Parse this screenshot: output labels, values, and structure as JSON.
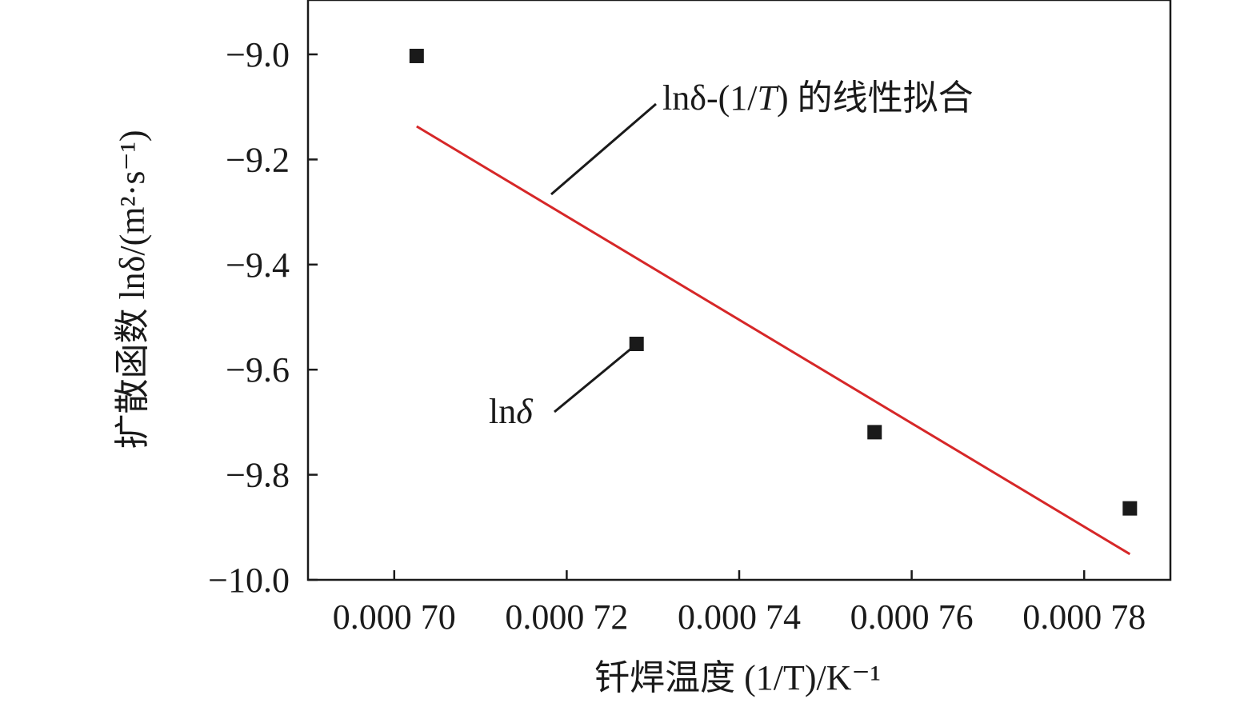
{
  "chart_data": {
    "type": "scatter",
    "title": "",
    "xlabel": "钎焊温度 (1/T)/K⁻¹",
    "ylabel": "扩散函数 lnδ/(m²·s⁻¹)",
    "xlim": [
      0.00069,
      0.00079
    ],
    "ylim": [
      -10.0,
      -8.9
    ],
    "x_ticks": [
      0.0007,
      0.00072,
      0.00074,
      0.00076,
      0.00078
    ],
    "x_tick_labels": [
      "0.000 70",
      "0.000 72",
      "0.000 74",
      "0.000 76",
      "0.000 78"
    ],
    "y_ticks": [
      -9.0,
      -9.2,
      -9.4,
      -9.6,
      -9.8,
      -10.0
    ],
    "y_tick_labels": [
      "−9.0",
      "−9.2",
      "−9.4",
      "−9.6",
      "−9.8",
      "−10.0"
    ],
    "grid": false,
    "series": [
      {
        "type": "scatter",
        "marker": "square",
        "color": "#1a1a1a",
        "x": [
          0.0007026,
          0.0007281,
          0.0007557,
          0.0007853
        ],
        "y": [
          -9.003,
          -9.551,
          -9.719,
          -9.864
        ]
      },
      {
        "type": "line",
        "color": "#d62728",
        "x": [
          0.0007026,
          0.0007853
        ],
        "y": [
          -9.137,
          -9.951
        ]
      }
    ],
    "annotations": [
      {
        "text_main": "lnδ-(1/",
        "text_italic": "T",
        "text_tail": ") 的线性拟合"
      },
      {
        "text_main": "ln",
        "text_italic": "δ"
      }
    ]
  }
}
